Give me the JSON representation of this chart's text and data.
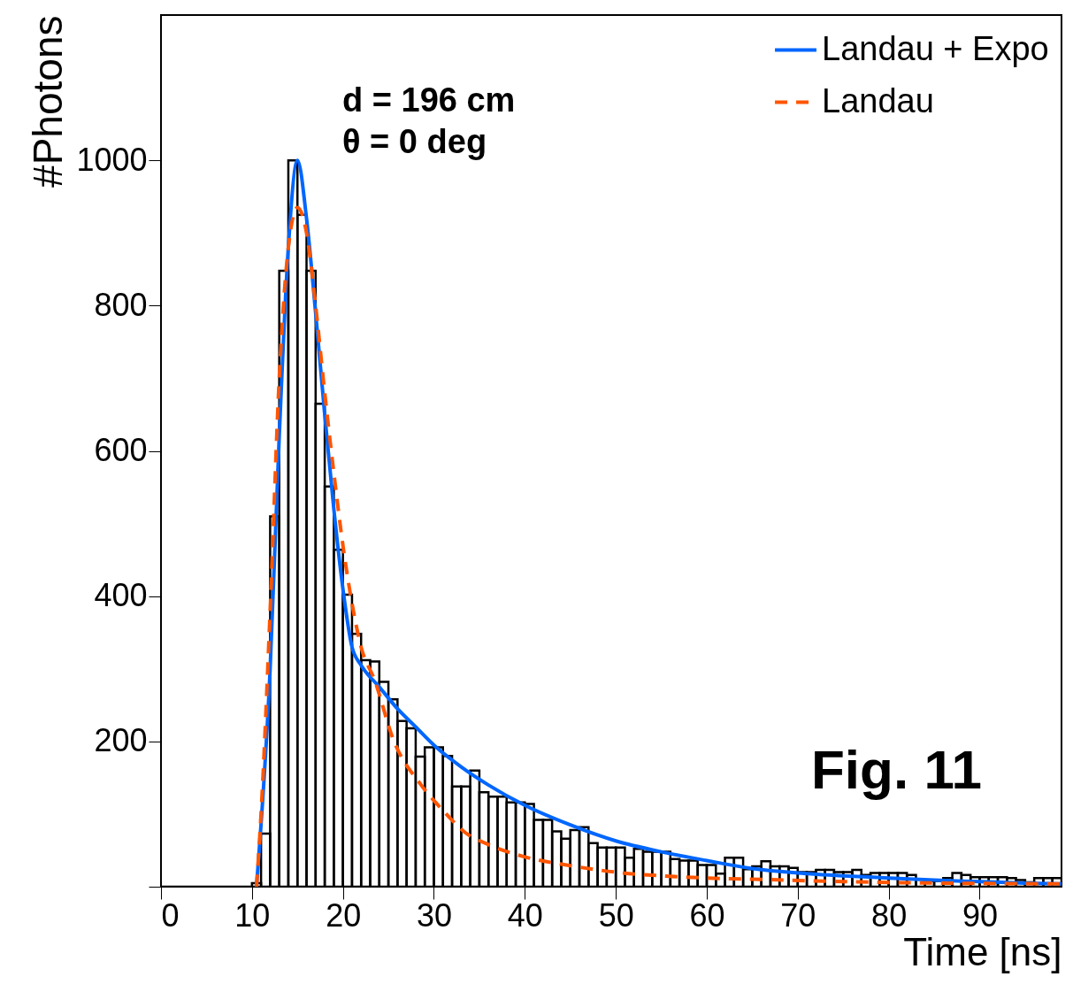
{
  "chart_data": {
    "type": "histogram",
    "xlabel": "Time [ns]",
    "ylabel": "#Photons",
    "xlim": [
      0,
      99
    ],
    "ylim": [
      0,
      1200
    ],
    "xticks": [
      0,
      10,
      20,
      30,
      40,
      50,
      60,
      70,
      80,
      90
    ],
    "yticks": [
      {
        "value": 0,
        "label": null
      },
      200,
      400,
      600,
      800,
      1000
    ],
    "grid": false,
    "legend": "top right",
    "annotations": [
      "d = 196 cm",
      "θ = 0 deg",
      "Fig. 11"
    ],
    "series": [
      {
        "color": "#000000",
        "bins": [
          0,
          1,
          2,
          3,
          4,
          5,
          6,
          7,
          8,
          9,
          10,
          11,
          12,
          13,
          14,
          15,
          16,
          17,
          18,
          19,
          20,
          21,
          22,
          23,
          24,
          25,
          26,
          27,
          28,
          29,
          30,
          31,
          32,
          33,
          34,
          35,
          36,
          37,
          38,
          39,
          40,
          41,
          42,
          43,
          44,
          45,
          46,
          47,
          48,
          49,
          50,
          51,
          52,
          53,
          54,
          55,
          56,
          57,
          58,
          59,
          60,
          61,
          62,
          63,
          64,
          65,
          66,
          67,
          68,
          69,
          70,
          71,
          72,
          73,
          74,
          75,
          76,
          77,
          78,
          79,
          80,
          81,
          82,
          83,
          84,
          85,
          86,
          87,
          88,
          89,
          90,
          91,
          92,
          93,
          94,
          95,
          96,
          97,
          98,
          99
        ],
        "values": [
          0,
          0,
          0,
          0,
          0,
          0,
          0,
          0,
          0,
          0,
          5,
          73,
          510,
          848,
          1000,
          925,
          848,
          665,
          551,
          464,
          402,
          348,
          312,
          310,
          282,
          258,
          228,
          218,
          179,
          192,
          192,
          180,
          138,
          138,
          160,
          130,
          124,
          124,
          116,
          116,
          114,
          92,
          92,
          76,
          66,
          78,
          82,
          60,
          54,
          54,
          54,
          40,
          52,
          48,
          48,
          48,
          38,
          36,
          36,
          30,
          30,
          18,
          40,
          40,
          24,
          28,
          35,
          28,
          28,
          26,
          20,
          20,
          23,
          23,
          20,
          20,
          23,
          16,
          19,
          19,
          19,
          19,
          16,
          10,
          8,
          8,
          12,
          19,
          16,
          13,
          13,
          13,
          13,
          12,
          9,
          6,
          12,
          12,
          12
        ]
      },
      {
        "type": "line",
        "name": "Landau + Expo",
        "color": "#0066ff",
        "line_style": "solid",
        "x": [
          10.5,
          12,
          13,
          14,
          15,
          16,
          17,
          18,
          19,
          20,
          21,
          22,
          24,
          26,
          28,
          30,
          33,
          36,
          40,
          45,
          50,
          55,
          60,
          65,
          70,
          75,
          80,
          85,
          90,
          95,
          99
        ],
        "values": [
          0,
          300,
          620,
          880,
          1000,
          920,
          790,
          650,
          520,
          410,
          330,
          305,
          275,
          245,
          220,
          195,
          165,
          140,
          112,
          85,
          63,
          48,
          36,
          25,
          19,
          15,
          12,
          9,
          7,
          5,
          4
        ]
      },
      {
        "type": "line",
        "name": "Landau",
        "color": "#ff5500",
        "line_style": "dashed",
        "x": [
          10.5,
          11,
          12,
          13,
          14,
          15,
          16,
          17,
          18,
          19,
          20,
          21,
          22,
          23.5,
          25.5,
          28.6,
          31,
          33.5,
          36,
          40,
          45,
          50,
          55,
          60,
          66,
          75,
          85,
          99
        ],
        "values": [
          0,
          100,
          380,
          700,
          880,
          935,
          900,
          800,
          680,
          570,
          470,
          390,
          330,
          284,
          204,
          140,
          105,
          74,
          58,
          41,
          29,
          20,
          15,
          12,
          10,
          7,
          5,
          4
        ]
      }
    ]
  }
}
